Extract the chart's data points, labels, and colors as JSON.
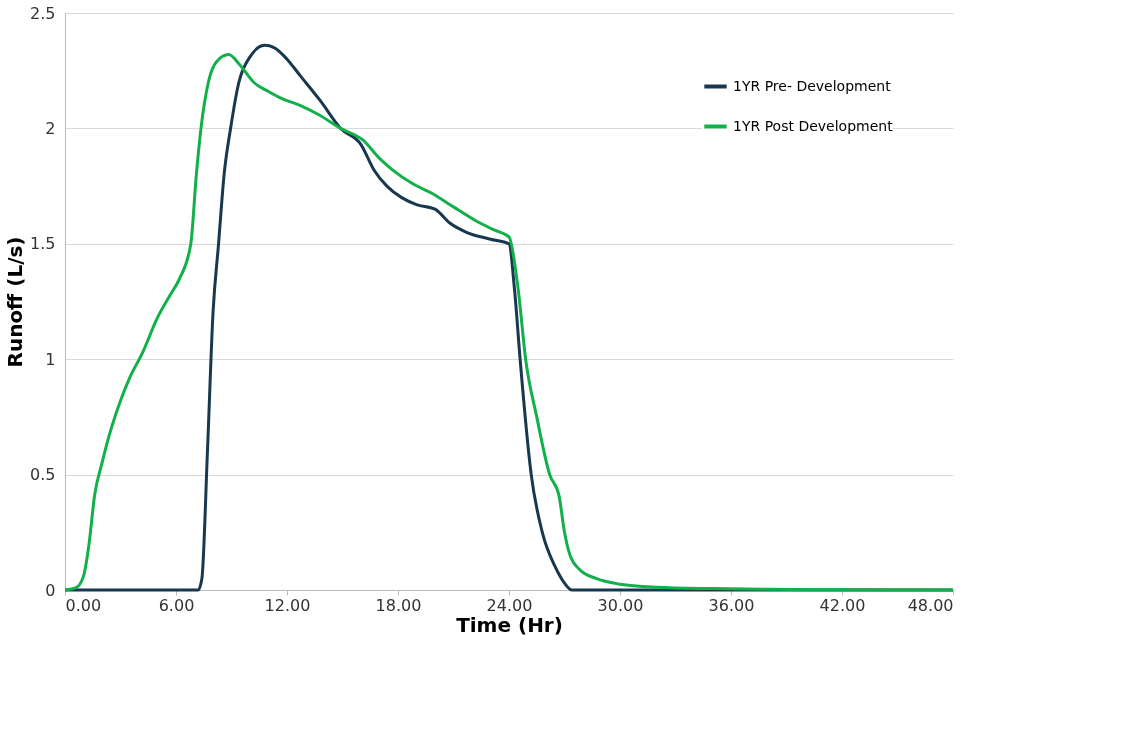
{
  "chart_data": {
    "type": "line",
    "xlabel": "Time (Hr)",
    "ylabel": "Runoff (L/s)",
    "xlim": [
      0,
      48
    ],
    "ylim": [
      0,
      2.5
    ],
    "xticks": [
      {
        "value": 0,
        "label": "0.00"
      },
      {
        "value": 6,
        "label": "6.00"
      },
      {
        "value": 12,
        "label": "12.00"
      },
      {
        "value": 18,
        "label": "18.00"
      },
      {
        "value": 24,
        "label": "24.00"
      },
      {
        "value": 30,
        "label": "30.00"
      },
      {
        "value": 36,
        "label": "36.00"
      },
      {
        "value": 42,
        "label": "42.00"
      },
      {
        "value": 48,
        "label": "48.00"
      }
    ],
    "yticks": [
      0,
      0.5,
      1,
      1.5,
      2,
      2.5
    ],
    "grid": "y",
    "legend": "top right",
    "marker": "none",
    "line_style": "solid",
    "series": [
      {
        "name": "1YR Pre- Development",
        "color": "#17384f",
        "x": [
          0,
          7.2,
          7.4,
          7.7,
          8.0,
          8.3,
          8.6,
          8.95,
          9.4,
          10.0,
          10.8,
          11.3,
          12.0,
          12.7,
          13.8,
          14.9,
          16.0,
          16.7,
          17.4,
          18.2,
          19.0,
          20.0,
          20.8,
          21.7,
          23.0,
          24.0,
          24.3,
          24.6,
          25.2,
          25.8,
          26.5,
          27.0,
          27.4,
          30,
          36,
          42,
          48
        ],
        "values": [
          0,
          0,
          0.05,
          0.6,
          1.2,
          1.5,
          1.8,
          2.0,
          2.2,
          2.31,
          2.36,
          2.35,
          2.3,
          2.23,
          2.12,
          2.0,
          1.93,
          1.82,
          1.75,
          1.7,
          1.67,
          1.65,
          1.59,
          1.55,
          1.52,
          1.5,
          1.3,
          1.0,
          0.5,
          0.25,
          0.1,
          0.03,
          0,
          0,
          0,
          0,
          0
        ]
      },
      {
        "name": "1YR Post Development",
        "color": "#12b04b",
        "x": [
          0,
          0.6,
          1.0,
          1.3,
          1.6,
          2.0,
          2.5,
          3.0,
          3.5,
          4.2,
          5.0,
          5.7,
          6.2,
          6.8,
          7.1,
          7.35,
          7.75,
          8.2,
          8.85,
          9.4,
          10.2,
          11.0,
          11.7,
          12.7,
          13.7,
          14.9,
          16.1,
          17.0,
          17.7,
          18.8,
          19.8,
          21.0,
          22.2,
          23.2,
          24.0,
          24.5,
          24.9,
          25.5,
          26.2,
          26.7,
          27.0,
          27.3,
          27.8,
          28.7,
          30.0,
          32.0,
          35.0,
          38.0,
          42.0,
          48.0
        ],
        "values": [
          0,
          0.01,
          0.06,
          0.2,
          0.41,
          0.55,
          0.7,
          0.82,
          0.92,
          1.03,
          1.18,
          1.28,
          1.35,
          1.5,
          1.8,
          2.0,
          2.2,
          2.29,
          2.32,
          2.28,
          2.2,
          2.16,
          2.13,
          2.1,
          2.06,
          2.0,
          1.95,
          1.87,
          1.82,
          1.76,
          1.72,
          1.66,
          1.6,
          1.56,
          1.53,
          1.3,
          1.0,
          0.75,
          0.5,
          0.41,
          0.25,
          0.15,
          0.09,
          0.05,
          0.025,
          0.012,
          0.006,
          0.003,
          0.001,
          0
        ]
      }
    ]
  }
}
